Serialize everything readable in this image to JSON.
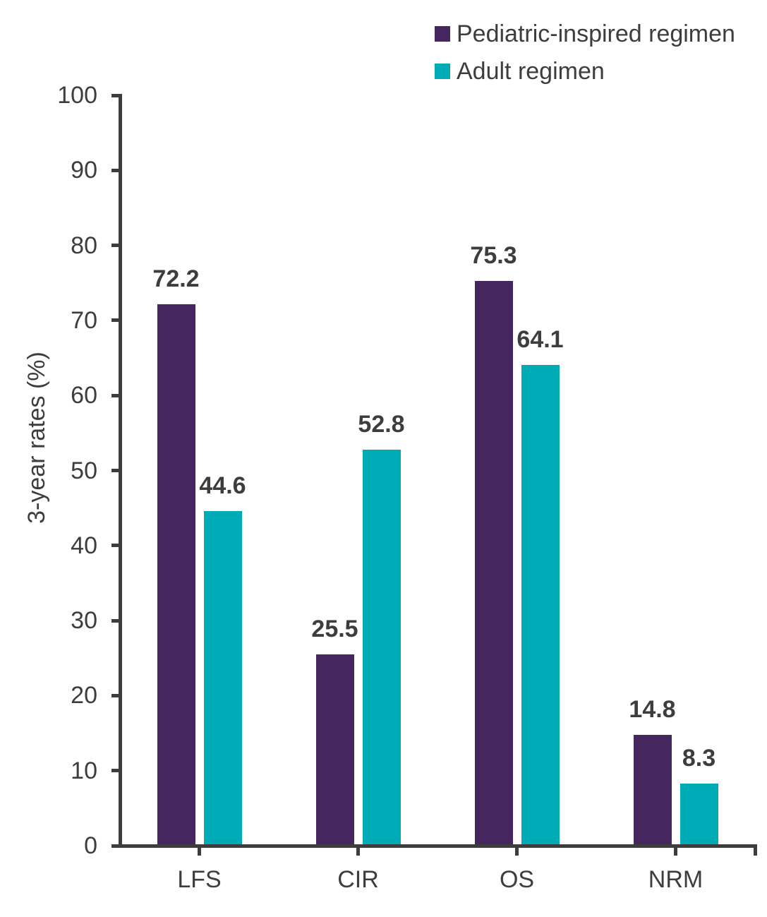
{
  "chart_data": {
    "type": "bar",
    "categories": [
      "LFS",
      "CIR",
      "OS",
      "NRM"
    ],
    "series": [
      {
        "name": "Pediatric-inspired regimen",
        "color": "#46265E",
        "values": [
          72.2,
          25.5,
          75.3,
          14.8
        ]
      },
      {
        "name": "Adult regimen",
        "color": "#00ABB8",
        "values": [
          44.6,
          52.8,
          64.1,
          8.3
        ]
      }
    ],
    "title": "",
    "xlabel": "",
    "ylabel": "3-year rates (%)",
    "ylim": [
      0,
      100
    ],
    "yticks": [
      0,
      10,
      20,
      30,
      40,
      50,
      60,
      70,
      80,
      90,
      100
    ],
    "grid": false,
    "legend_position": "top-right",
    "bar_value_labels": true
  },
  "colors": {
    "axis": "#3d3d3d",
    "text": "#3d3d3d",
    "background": "#ffffff"
  }
}
